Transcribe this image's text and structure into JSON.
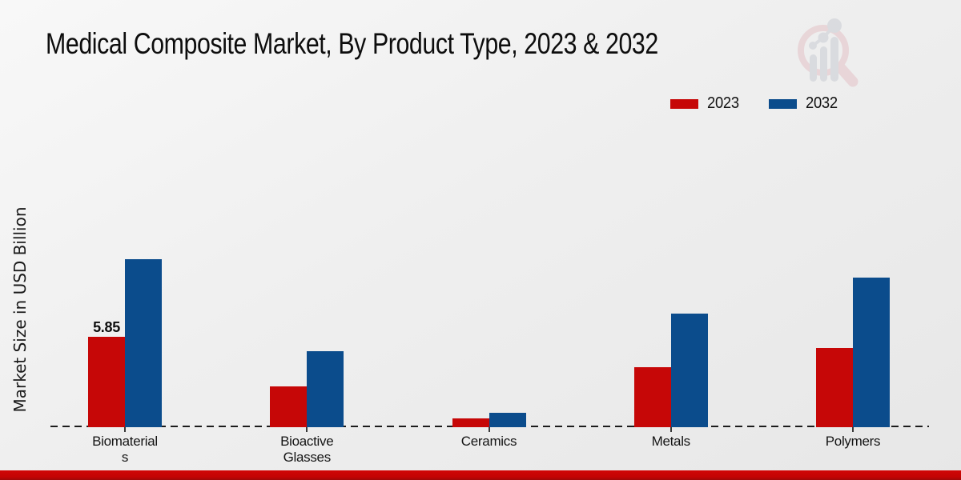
{
  "header": {
    "title": "Medical Composite Market, By Product Type, 2023 & 2032"
  },
  "branding": {
    "logo_icon": "magnifier-bar-chart-watermark"
  },
  "chart_data": {
    "type": "bar",
    "title": "Medical Composite Market, By Product Type, 2023 & 2032",
    "xlabel": "",
    "ylabel": "Market Size in USD Billion",
    "categories": [
      "Biomaterials",
      "Bioactive Glasses",
      "Ceramics",
      "Metals",
      "Polymers"
    ],
    "tick_labels": [
      "Biomaterial\ns",
      "Bioactive\nGlasses",
      "Ceramics",
      "Metals",
      "Polymers"
    ],
    "series": [
      {
        "name": "2023",
        "color": "#c60707",
        "values": [
          5.85,
          2.64,
          0.57,
          3.88,
          5.12
        ]
      },
      {
        "name": "2032",
        "color": "#0b4c8c",
        "values": [
          10.87,
          4.92,
          0.93,
          7.35,
          9.68
        ]
      }
    ],
    "annotations": [
      {
        "category_index": 0,
        "series_index": 0,
        "text": "5.85"
      }
    ],
    "ylim": [
      0,
      12
    ],
    "grid": false,
    "legend_position": "top-right",
    "baseline_style": "dashed",
    "axis_labels_visible": false
  },
  "footer": {
    "accent_color": "#c20404"
  }
}
